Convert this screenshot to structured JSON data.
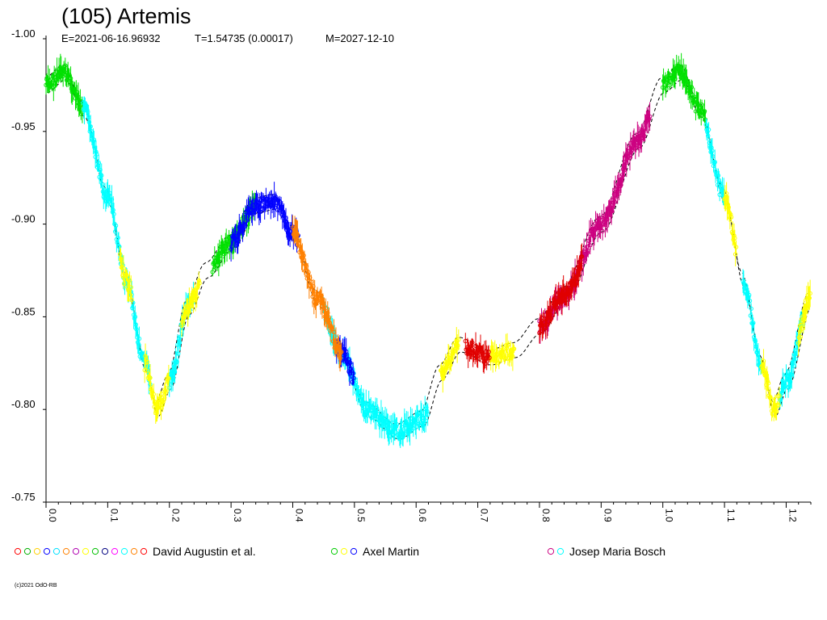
{
  "chart_data": {
    "type": "scatter",
    "title": "(105) Artemis",
    "subtitle": {
      "epoch": "E=2021-06-16.96932",
      "period": "T=1.54735 (0.00017)",
      "modified": "M=2027-12-10"
    },
    "xlabel": "",
    "ylabel": "",
    "xlim": [
      0.0,
      1.24
    ],
    "ylim": [
      -1.0,
      -0.75
    ],
    "y_ticks": [
      "-1.00",
      "-0.95",
      "-0.90",
      "-0.85",
      "-0.80",
      "-0.75"
    ],
    "x_ticks": [
      "0.0",
      "0.1",
      "0.2",
      "0.3",
      "0.4",
      "0.5",
      "0.6",
      "0.7",
      "0.8",
      "0.9",
      "1.0",
      "1.1",
      "1.2"
    ],
    "grid": false,
    "legend_placement": "bottom",
    "legend": [
      {
        "name": "David Augustin et al.",
        "symbols": [
          "#ff0000",
          "#00b000",
          "#ffd000",
          "#0000ff",
          "#00e0ff",
          "#ff8000",
          "#b000b0",
          "#ffff00",
          "#00c000",
          "#000080",
          "#ff00ff",
          "#00ffff",
          "#ff8000",
          "#ff0000"
        ]
      },
      {
        "name": "Axel Martin",
        "symbols": [
          "#00cc00",
          "#ffff00",
          "#0000ff"
        ]
      },
      {
        "name": "Josep Maria Bosch",
        "symbols": [
          "#cc0080",
          "#00ffff"
        ]
      }
    ],
    "series": [
      {
        "color": "#00e000",
        "segments": [
          [
            0.0,
            0.06
          ],
          [
            1.0,
            1.07
          ],
          [
            0.27,
            0.34
          ]
        ]
      },
      {
        "color": "#00ffff",
        "segments": [
          [
            0.06,
            0.14
          ],
          [
            0.14,
            0.17
          ],
          [
            0.2,
            0.24
          ],
          [
            0.45,
            0.62
          ],
          [
            1.07,
            1.1
          ],
          [
            1.13,
            1.16
          ],
          [
            1.19,
            1.23
          ]
        ]
      },
      {
        "color": "#ffff00",
        "segments": [
          [
            0.12,
            0.14
          ],
          [
            0.16,
            0.2
          ],
          [
            0.22,
            0.25
          ],
          [
            0.64,
            0.67
          ],
          [
            0.72,
            0.76
          ],
          [
            1.1,
            1.12
          ],
          [
            1.16,
            1.19
          ],
          [
            1.22,
            1.24
          ]
        ]
      },
      {
        "color": "#0000ff",
        "segments": [
          [
            0.3,
            0.41
          ],
          [
            0.47,
            0.5
          ]
        ]
      },
      {
        "color": "#cc0080",
        "segments": [
          [
            0.8,
            0.98
          ]
        ]
      },
      {
        "color": "#e00000",
        "segments": [
          [
            0.68,
            0.72
          ],
          [
            0.8,
            0.87
          ]
        ]
      },
      {
        "color": "#ff8000",
        "segments": [
          [
            0.4,
            0.48
          ]
        ]
      }
    ],
    "copyright": "(c)2021 OdO-RB"
  }
}
